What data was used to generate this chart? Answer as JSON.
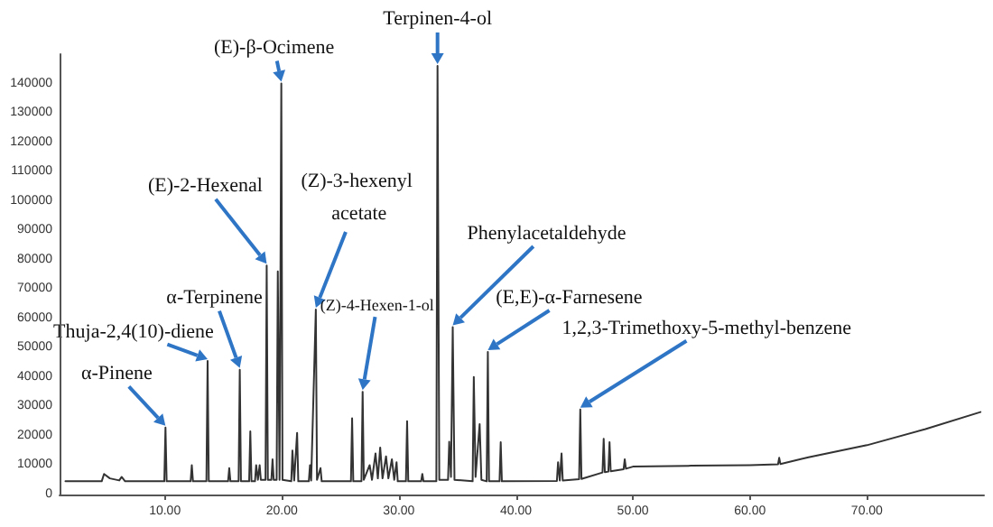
{
  "chart_data": {
    "type": "line",
    "xlim": [
      1,
      80
    ],
    "ylim": [
      0,
      150000
    ],
    "xticks": [
      {
        "value": 10,
        "label": "10.00"
      },
      {
        "value": 20,
        "label": "20.00"
      },
      {
        "value": 30,
        "label": "30.00"
      },
      {
        "value": 40,
        "label": "40.00"
      },
      {
        "value": 50,
        "label": "50.00"
      },
      {
        "value": 60,
        "label": "60.00"
      },
      {
        "value": 70,
        "label": "70.00"
      }
    ],
    "yticks": [
      0,
      10000,
      20000,
      30000,
      40000,
      50000,
      60000,
      70000,
      80000,
      90000,
      100000,
      110000,
      120000,
      130000,
      140000
    ],
    "grid": false,
    "marker": "none",
    "line_style": "solid",
    "series": [
      {
        "color": "#333333",
        "x": [
          1.5,
          4.6,
          4.8,
          5.3,
          6.1,
          6.3,
          6.6,
          9.95,
          10.05,
          10.15,
          12.2,
          12.3,
          12.4,
          13.55,
          13.65,
          13.75,
          15.4,
          15.5,
          15.6,
          16.3,
          16.4,
          16.5,
          17.2,
          17.3,
          17.4,
          17.7,
          17.8,
          17.95,
          18.1,
          18.2,
          18.6,
          18.7,
          18.8,
          19.1,
          19.2,
          19.3,
          19.55,
          19.65,
          19.8,
          19.95,
          20.05,
          20.8,
          20.9,
          21.05,
          21.3,
          21.4,
          22.3,
          22.4,
          22.5,
          22.9,
          23.0,
          23.3,
          23.4,
          25.9,
          26.0,
          26.1,
          26.8,
          26.9,
          27.0,
          27.5,
          27.7,
          28.0,
          28.2,
          28.4,
          28.6,
          28.9,
          29.1,
          29.4,
          29.6,
          29.8,
          29.9,
          30.6,
          30.7,
          30.8,
          31.9,
          32.0,
          32.1,
          33.2,
          33.3,
          33.45,
          34.2,
          34.3,
          34.45,
          34.6,
          34.75,
          36.3,
          36.4,
          36.55,
          36.9,
          37.05,
          37.5,
          37.6,
          37.7,
          38.6,
          38.7,
          38.8,
          43.5,
          43.6,
          43.75,
          43.9,
          44.0,
          45.4,
          45.5,
          45.6,
          47.4,
          47.5,
          47.6,
          47.9,
          48.0,
          48.1,
          49.2,
          49.3,
          49.4,
          50,
          55,
          60,
          62.4,
          62.5,
          62.6,
          65,
          70,
          75,
          79.7
        ],
        "values": [
          4500,
          4500,
          7000,
          5500,
          4800,
          6000,
          4500,
          4500,
          22800,
          4500,
          4500,
          10000,
          4500,
          4500,
          45500,
          4500,
          4500,
          9000,
          4500,
          4500,
          42500,
          4500,
          4500,
          21500,
          4500,
          4500,
          10000,
          5000,
          10000,
          5000,
          5000,
          78000,
          5000,
          5000,
          12000,
          5000,
          5000,
          76000,
          5000,
          140000,
          5000,
          4500,
          15000,
          4800,
          21000,
          4500,
          4500,
          10000,
          4800,
          63000,
          5000,
          9000,
          4500,
          4500,
          26000,
          4500,
          4500,
          35000,
          5000,
          10000,
          5000,
          14000,
          5500,
          16000,
          5500,
          13000,
          5500,
          12000,
          5000,
          11000,
          4500,
          4500,
          25000,
          4500,
          4500,
          7000,
          4500,
          4500,
          146000,
          5000,
          5000,
          18000,
          6000,
          57000,
          5000,
          4500,
          40000,
          6000,
          24000,
          5000,
          4500,
          48600,
          4500,
          4500,
          17800,
          4500,
          4600,
          11000,
          4800,
          14000,
          4800,
          5200,
          29000,
          5300,
          7500,
          19000,
          7600,
          7800,
          17800,
          7900,
          8600,
          12000,
          8800,
          9500,
          9800,
          10000,
          10300,
          12500,
          10400,
          12700,
          16800,
          22300,
          28100
        ]
      }
    ],
    "annotations": [
      {
        "text": "α-Pinene",
        "x": 10.05,
        "y": 22800
      },
      {
        "text": "Thuja-2,4(10)-diene",
        "x": 13.65,
        "y": 45500
      },
      {
        "text": "α-Terpinene",
        "x": 16.4,
        "y": 42500
      },
      {
        "text": "(E)-2-Hexenal",
        "x": 18.7,
        "y": 78000
      },
      {
        "text": "(E)-β-Ocimene",
        "x": 19.95,
        "y": 140000
      },
      {
        "text": "(Z)-3-hexenyl acetate",
        "x": 22.9,
        "y": 63000
      },
      {
        "text": "(Z)-4-Hexen-1-ol",
        "x": 26.9,
        "y": 35000
      },
      {
        "text": "Terpinen-4-ol",
        "x": 33.3,
        "y": 146000
      },
      {
        "text": "Phenylacetaldehyde",
        "x": 34.6,
        "y": 57000
      },
      {
        "text": "(E,E)-α-Farnesene",
        "x": 37.6,
        "y": 48600
      },
      {
        "text": "1,2,3-Trimethoxy-5-methyl-benzene",
        "x": 45.5,
        "y": 29000
      }
    ]
  }
}
